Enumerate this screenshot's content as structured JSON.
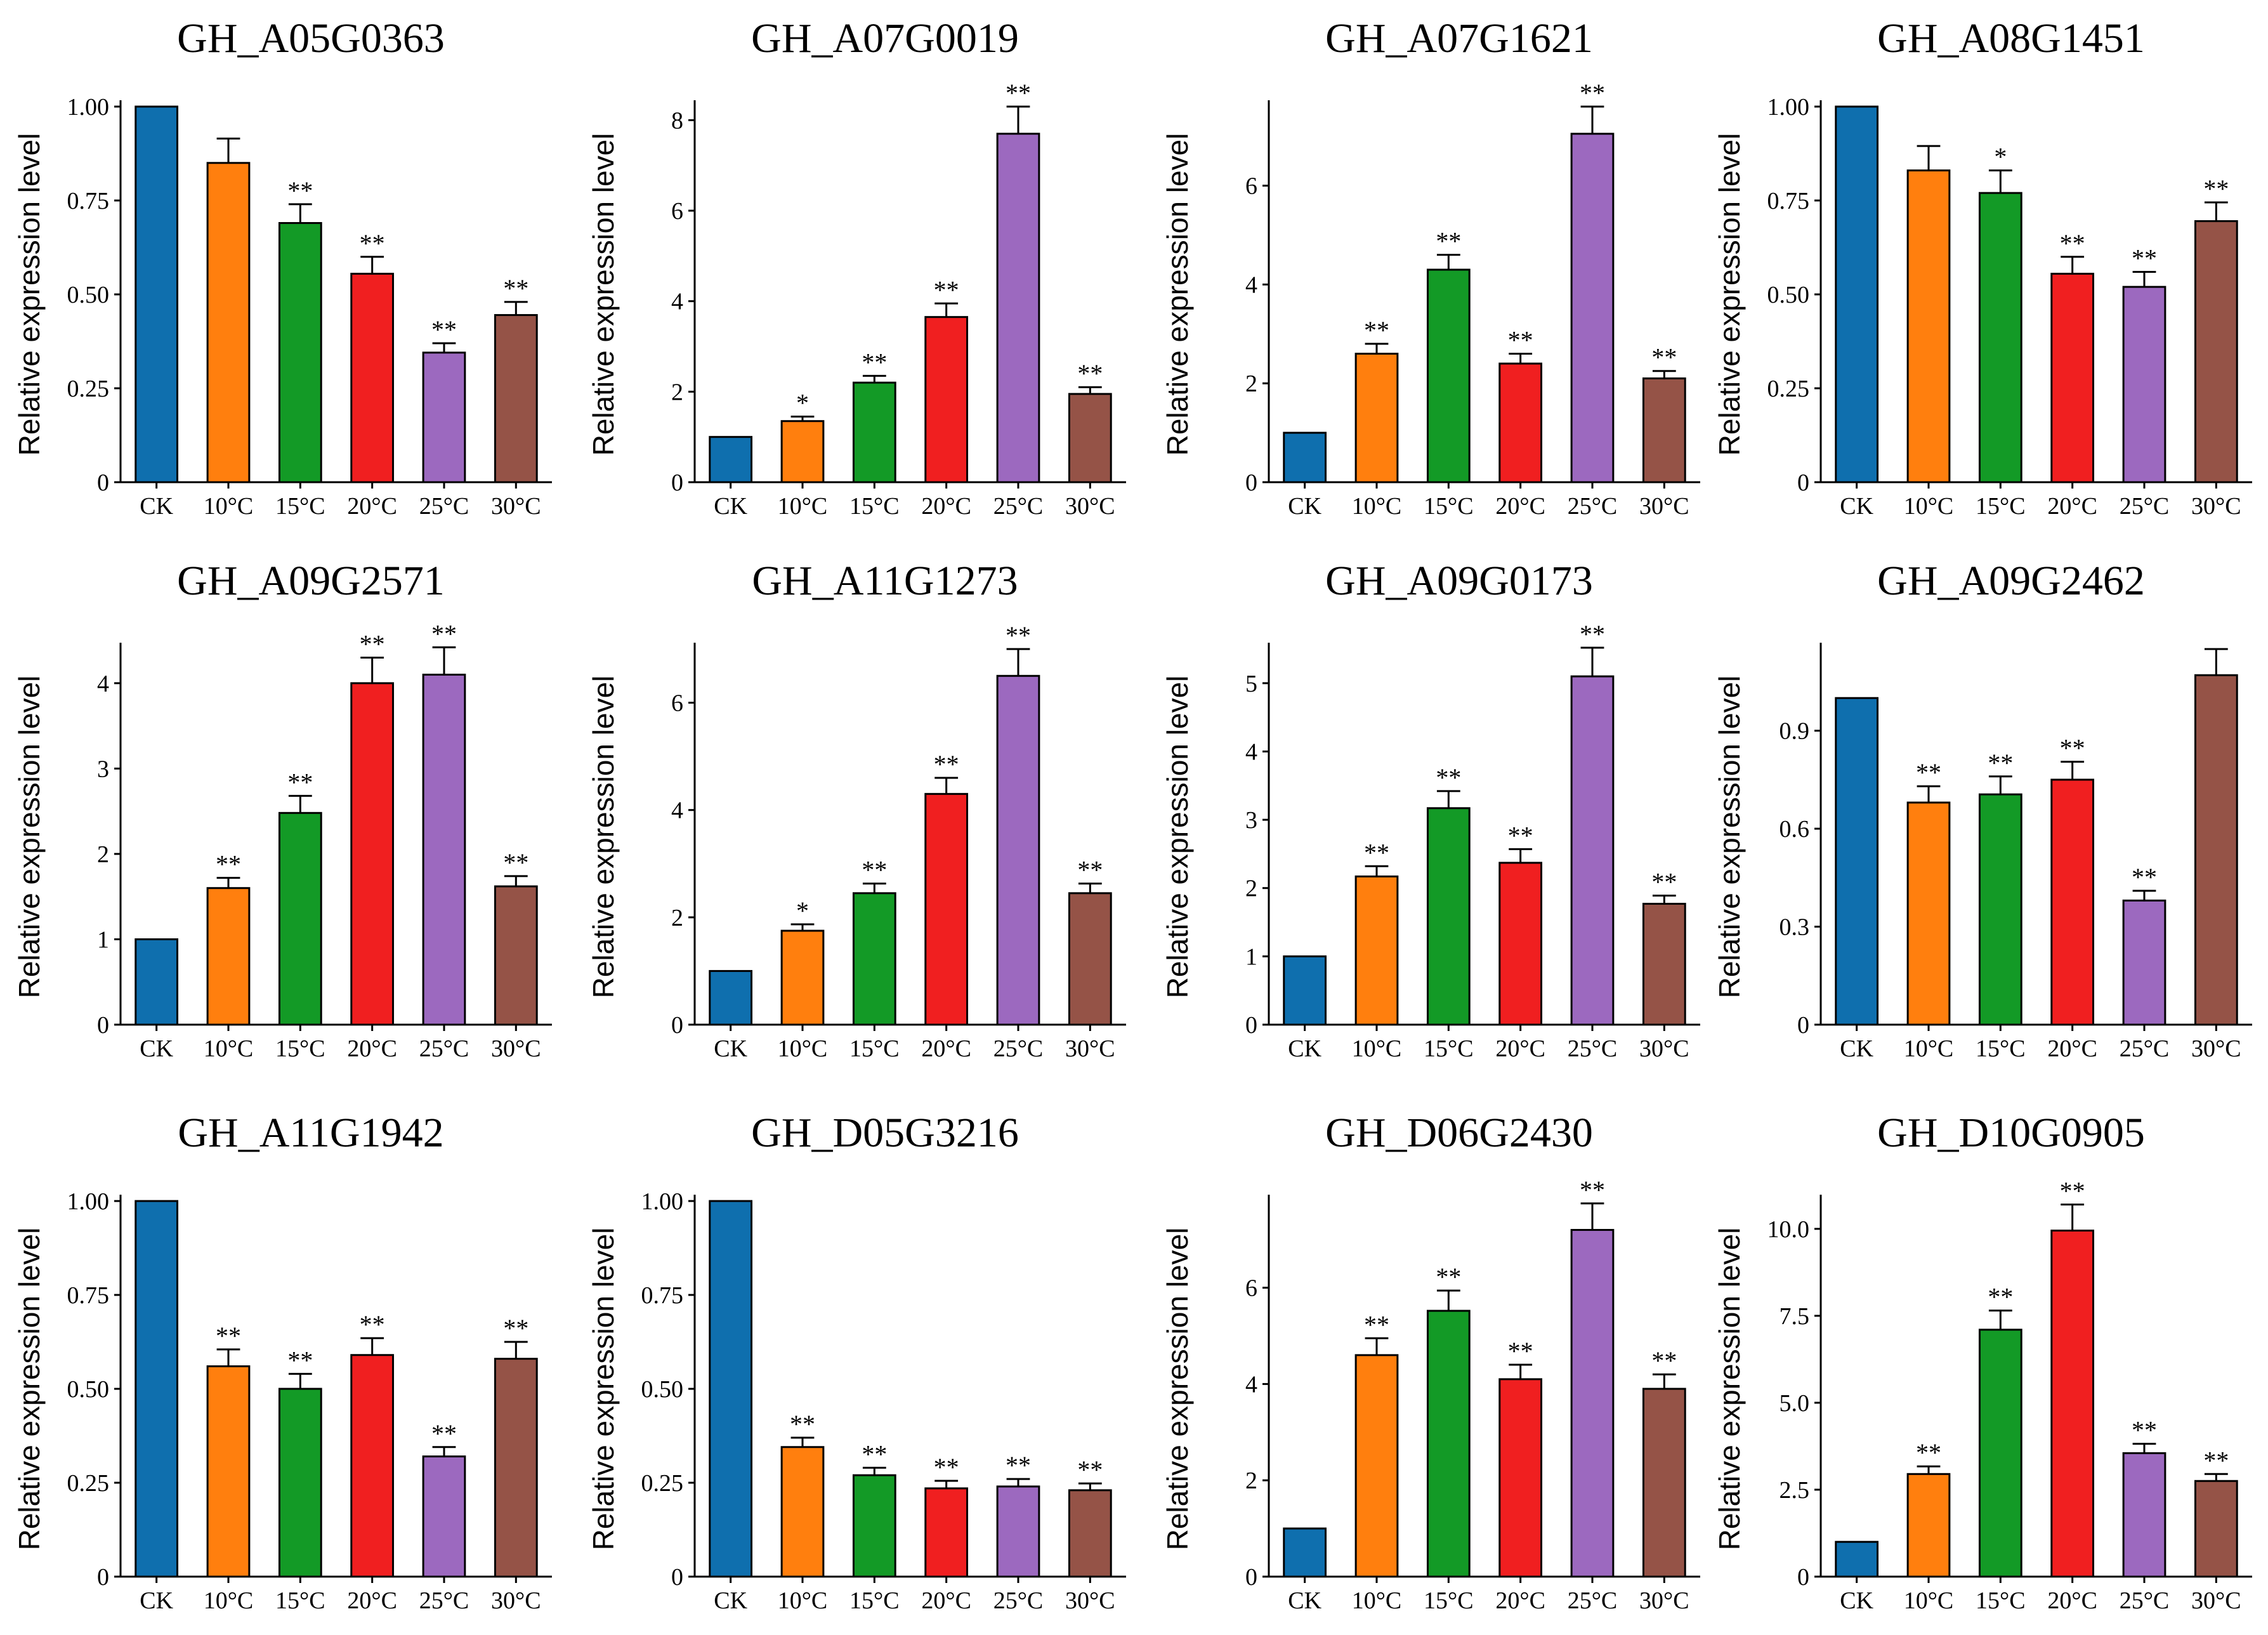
{
  "chart_data": [
    {
      "type": "bar",
      "title": "GH_A05G0363",
      "ylabel": "Relative expression level",
      "categories": [
        "CK",
        "10°C",
        "15°C",
        "20°C",
        "25°C",
        "30°C"
      ],
      "values": [
        1.0,
        0.85,
        0.69,
        0.555,
        0.345,
        0.445
      ],
      "errors": [
        0,
        0.065,
        0.05,
        0.045,
        0.025,
        0.035
      ],
      "significance": [
        "",
        "",
        "**",
        "**",
        "**",
        "**"
      ],
      "ylim": [
        0,
        1.0
      ],
      "yticks": [
        0,
        0.25,
        0.5,
        0.75,
        1.0
      ],
      "ytick_labels": [
        "0",
        "0.25",
        "0.50",
        "0.75",
        "1.00"
      ],
      "colors": [
        "#0f6fae",
        "#ff7f0e",
        "#139a26",
        "#f01f20",
        "#9c69bf",
        "#955347"
      ]
    },
    {
      "type": "bar",
      "title": "GH_A07G0019",
      "ylabel": "Relative expression level",
      "categories": [
        "CK",
        "10°C",
        "15°C",
        "20°C",
        "25°C",
        "30°C"
      ],
      "values": [
        1.0,
        1.35,
        2.2,
        3.65,
        7.7,
        1.95
      ],
      "errors": [
        0,
        0.1,
        0.15,
        0.3,
        0.6,
        0.15
      ],
      "significance": [
        "",
        "*",
        "**",
        "**",
        "**",
        "**"
      ],
      "ylim": [
        0,
        8.3
      ],
      "yticks": [
        0,
        2,
        4,
        6,
        8
      ],
      "ytick_labels": [
        "0",
        "2",
        "4",
        "6",
        "8"
      ],
      "colors": [
        "#0f6fae",
        "#ff7f0e",
        "#139a26",
        "#f01f20",
        "#9c69bf",
        "#955347"
      ]
    },
    {
      "type": "bar",
      "title": "GH_A07G1621",
      "ylabel": "Relative expression level",
      "categories": [
        "CK",
        "10°C",
        "15°C",
        "20°C",
        "25°C",
        "30°C"
      ],
      "values": [
        1.0,
        2.6,
        4.3,
        2.4,
        7.05,
        2.1
      ],
      "errors": [
        0,
        0.2,
        0.3,
        0.2,
        0.55,
        0.15
      ],
      "significance": [
        "",
        "**",
        "**",
        "**",
        "**",
        "**"
      ],
      "ylim": [
        0,
        7.6
      ],
      "yticks": [
        0,
        2,
        4,
        6
      ],
      "ytick_labels": [
        "0",
        "2",
        "4",
        "6"
      ],
      "colors": [
        "#0f6fae",
        "#ff7f0e",
        "#139a26",
        "#f01f20",
        "#9c69bf",
        "#955347"
      ]
    },
    {
      "type": "bar",
      "title": "GH_A08G1451",
      "ylabel": "Relative expression level",
      "categories": [
        "CK",
        "10°C",
        "15°C",
        "20°C",
        "25°C",
        "30°C"
      ],
      "values": [
        1.0,
        0.83,
        0.77,
        0.555,
        0.52,
        0.695
      ],
      "errors": [
        0,
        0.065,
        0.06,
        0.045,
        0.04,
        0.05
      ],
      "significance": [
        "",
        "",
        "*",
        "**",
        "**",
        "**"
      ],
      "ylim": [
        0,
        1.0
      ],
      "yticks": [
        0,
        0.25,
        0.5,
        0.75,
        1.0
      ],
      "ytick_labels": [
        "0",
        "0.25",
        "0.50",
        "0.75",
        "1.00"
      ],
      "colors": [
        "#0f6fae",
        "#ff7f0e",
        "#139a26",
        "#f01f20",
        "#9c69bf",
        "#955347"
      ]
    },
    {
      "type": "bar",
      "title": "GH_A09G2571",
      "ylabel": "Relative expression level",
      "categories": [
        "CK",
        "10°C",
        "15°C",
        "20°C",
        "25°C",
        "30°C"
      ],
      "values": [
        1.0,
        1.6,
        2.48,
        4.0,
        4.1,
        1.62
      ],
      "errors": [
        0,
        0.12,
        0.2,
        0.3,
        0.32,
        0.12
      ],
      "significance": [
        "",
        "**",
        "**",
        "**",
        "**",
        "**"
      ],
      "ylim": [
        0,
        4.4
      ],
      "yticks": [
        0,
        1,
        2,
        3,
        4
      ],
      "ytick_labels": [
        "0",
        "1",
        "2",
        "3",
        "4"
      ],
      "colors": [
        "#0f6fae",
        "#ff7f0e",
        "#139a26",
        "#f01f20",
        "#9c69bf",
        "#955347"
      ]
    },
    {
      "type": "bar",
      "title": "GH_A11G1273",
      "ylabel": "Relative expression level",
      "categories": [
        "CK",
        "10°C",
        "15°C",
        "20°C",
        "25°C",
        "30°C"
      ],
      "values": [
        1.0,
        1.75,
        2.45,
        4.3,
        6.5,
        2.45
      ],
      "errors": [
        0,
        0.12,
        0.18,
        0.3,
        0.5,
        0.18
      ],
      "significance": [
        "",
        "*",
        "**",
        "**",
        "**",
        "**"
      ],
      "ylim": [
        0,
        7.0
      ],
      "yticks": [
        0,
        2,
        4,
        6
      ],
      "ytick_labels": [
        "0",
        "2",
        "4",
        "6"
      ],
      "colors": [
        "#0f6fae",
        "#ff7f0e",
        "#139a26",
        "#f01f20",
        "#9c69bf",
        "#955347"
      ]
    },
    {
      "type": "bar",
      "title": "GH_A09G0173",
      "ylabel": "Relative expression level",
      "categories": [
        "CK",
        "10°C",
        "15°C",
        "20°C",
        "25°C",
        "30°C"
      ],
      "values": [
        1.0,
        2.17,
        3.17,
        2.37,
        5.1,
        1.77
      ],
      "errors": [
        0,
        0.15,
        0.25,
        0.2,
        0.42,
        0.12
      ],
      "significance": [
        "",
        "**",
        "**",
        "**",
        "**",
        "**"
      ],
      "ylim": [
        0,
        5.5
      ],
      "yticks": [
        0,
        1,
        2,
        3,
        4,
        5
      ],
      "ytick_labels": [
        "0",
        "1",
        "2",
        "3",
        "4",
        "5"
      ],
      "colors": [
        "#0f6fae",
        "#ff7f0e",
        "#139a26",
        "#f01f20",
        "#9c69bf",
        "#955347"
      ]
    },
    {
      "type": "bar",
      "title": "GH_A09G2462",
      "ylabel": "Relative expression level",
      "categories": [
        "CK",
        "10°C",
        "15°C",
        "20°C",
        "25°C",
        "30°C"
      ],
      "values": [
        1.0,
        0.68,
        0.705,
        0.75,
        0.38,
        1.07
      ],
      "errors": [
        0,
        0.05,
        0.055,
        0.055,
        0.03,
        0.08
      ],
      "significance": [
        "",
        "**",
        "**",
        "**",
        "**",
        ""
      ],
      "ylim": [
        0,
        1.15
      ],
      "yticks": [
        0,
        0.3,
        0.6,
        0.9
      ],
      "ytick_labels": [
        "0",
        "0.3",
        "0.6",
        "0.9"
      ],
      "colors": [
        "#0f6fae",
        "#ff7f0e",
        "#139a26",
        "#f01f20",
        "#9c69bf",
        "#955347"
      ]
    },
    {
      "type": "bar",
      "title": "GH_A11G1942",
      "ylabel": "Relative expression level",
      "categories": [
        "CK",
        "10°C",
        "15°C",
        "20°C",
        "25°C",
        "30°C"
      ],
      "values": [
        1.0,
        0.56,
        0.5,
        0.59,
        0.32,
        0.58
      ],
      "errors": [
        0,
        0.045,
        0.04,
        0.045,
        0.025,
        0.045
      ],
      "significance": [
        "",
        "**",
        "**",
        "**",
        "**",
        "**"
      ],
      "ylim": [
        0,
        1.0
      ],
      "yticks": [
        0,
        0.25,
        0.5,
        0.75,
        1.0
      ],
      "ytick_labels": [
        "0",
        "0.25",
        "0.50",
        "0.75",
        "1.00"
      ],
      "colors": [
        "#0f6fae",
        "#ff7f0e",
        "#139a26",
        "#f01f20",
        "#9c69bf",
        "#955347"
      ]
    },
    {
      "type": "bar",
      "title": "GH_D05G3216",
      "ylabel": "Relative expression level",
      "categories": [
        "CK",
        "10°C",
        "15°C",
        "20°C",
        "25°C",
        "30°C"
      ],
      "values": [
        1.0,
        0.345,
        0.27,
        0.235,
        0.24,
        0.23
      ],
      "errors": [
        0,
        0.025,
        0.02,
        0.02,
        0.02,
        0.018
      ],
      "significance": [
        "",
        "**",
        "**",
        "**",
        "**",
        "**"
      ],
      "ylim": [
        0,
        1.0
      ],
      "yticks": [
        0,
        0.25,
        0.5,
        0.75,
        1.0
      ],
      "ytick_labels": [
        "0",
        "0.25",
        "0.50",
        "0.75",
        "1.00"
      ],
      "colors": [
        "#0f6fae",
        "#ff7f0e",
        "#139a26",
        "#f01f20",
        "#9c69bf",
        "#955347"
      ]
    },
    {
      "type": "bar",
      "title": "GH_D06G2430",
      "ylabel": "Relative expression level",
      "categories": [
        "CK",
        "10°C",
        "15°C",
        "20°C",
        "25°C",
        "30°C"
      ],
      "values": [
        1.0,
        4.6,
        5.52,
        4.1,
        7.2,
        3.9
      ],
      "errors": [
        0,
        0.35,
        0.42,
        0.3,
        0.55,
        0.3
      ],
      "significance": [
        "",
        "**",
        "**",
        "**",
        "**",
        "**"
      ],
      "ylim": [
        0,
        7.8
      ],
      "yticks": [
        0,
        2,
        4,
        6
      ],
      "ytick_labels": [
        "0",
        "2",
        "4",
        "6"
      ],
      "colors": [
        "#0f6fae",
        "#ff7f0e",
        "#139a26",
        "#f01f20",
        "#9c69bf",
        "#955347"
      ]
    },
    {
      "type": "bar",
      "title": "GH_D10G0905",
      "ylabel": "Relative expression level",
      "categories": [
        "CK",
        "10°C",
        "15°C",
        "20°C",
        "25°C",
        "30°C"
      ],
      "values": [
        1.0,
        2.95,
        7.1,
        9.95,
        3.55,
        2.75
      ],
      "errors": [
        0,
        0.22,
        0.55,
        0.75,
        0.27,
        0.2
      ],
      "significance": [
        "",
        "**",
        "**",
        "**",
        "**",
        "**"
      ],
      "ylim": [
        0,
        10.8
      ],
      "yticks": [
        0,
        2.5,
        5.0,
        7.5,
        10.0
      ],
      "ytick_labels": [
        "0",
        "2.5",
        "5.0",
        "7.5",
        "10.0"
      ],
      "colors": [
        "#0f6fae",
        "#ff7f0e",
        "#139a26",
        "#f01f20",
        "#9c69bf",
        "#955347"
      ]
    }
  ]
}
